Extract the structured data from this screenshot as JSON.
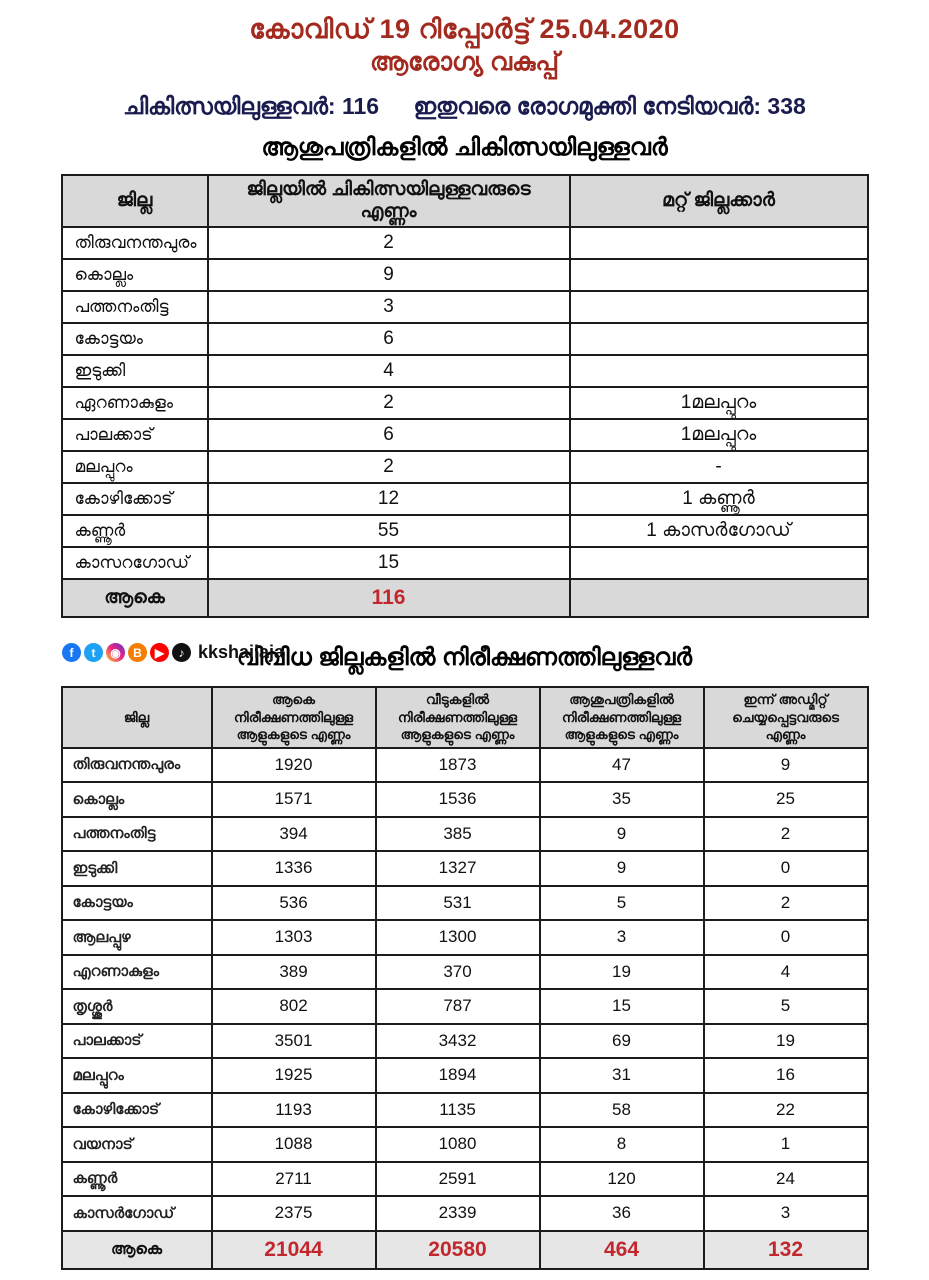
{
  "header": {
    "title": "കോവിഡ് 19 റിപ്പോർട്ട് 25.04.2020",
    "subtitle": "ആരോഗ്യ വകുപ്പ്",
    "in_treatment": "ചികിത്സയിലുള്ളവർ: 116",
    "recovered": "ഇതുവരെ രോഗമുക്തി നേടിയവർ: 338"
  },
  "hospital_table": {
    "heading": "ആശുപത്രികളിൽ ചികിത്സയിലുള്ളവർ",
    "columns": [
      "ജില്ല",
      "ജില്ലയിൽ ചികിത്സയിലുള്ളവരുടെ എണ്ണം",
      "മറ്റ് ജില്ലക്കാർ"
    ],
    "rows": [
      {
        "district": "തിരുവനന്തപുരം",
        "count": "2",
        "other": ""
      },
      {
        "district": "കൊല്ലം",
        "count": "9",
        "other": ""
      },
      {
        "district": "പത്തനംതിട്ട",
        "count": "3",
        "other": ""
      },
      {
        "district": "കോട്ടയം",
        "count": "6",
        "other": ""
      },
      {
        "district": "ഇടുക്കി",
        "count": "4",
        "other": ""
      },
      {
        "district": "ഏറണാകുളം",
        "count": "2",
        "other": "1മലപ്പുറം"
      },
      {
        "district": "പാലക്കാട്",
        "count": "6",
        "other": "1മലപ്പുറം"
      },
      {
        "district": "മലപ്പുറം",
        "count": "2",
        "other": "-"
      },
      {
        "district": "കോഴിക്കോട്",
        "count": "12",
        "other": "1 കണ്ണൂർ"
      },
      {
        "district": "കണ്ണൂർ",
        "count": "55",
        "other": "1 കാസർഗോഡ്"
      },
      {
        "district": "കാസറഗോഡ്",
        "count": "15",
        "other": ""
      }
    ],
    "total": {
      "label": "ആകെ",
      "count": "116",
      "other": ""
    }
  },
  "social": {
    "handle": "kkshailaja",
    "icons": [
      {
        "name": "facebook-icon",
        "glyph": "f",
        "color": "#1877f2"
      },
      {
        "name": "twitter-icon",
        "glyph": "t",
        "color": "#1da1f2"
      },
      {
        "name": "instagram-icon",
        "glyph": "◉",
        "color": "linear-gradient(45deg,#f9ce34,#ee2a7b,#6228d7)"
      },
      {
        "name": "blogger-icon",
        "glyph": "B",
        "color": "#f57d00"
      },
      {
        "name": "youtube-icon",
        "glyph": "▶",
        "color": "#ff0000"
      },
      {
        "name": "tiktok-icon",
        "glyph": "♪",
        "color": "#111111"
      }
    ]
  },
  "observation_table": {
    "heading": "വിവിധ ജില്ലകളിൽ നിരീക്ഷണത്തിലുള്ളവർ",
    "columns": [
      "ജില്ല",
      "ആകെ നിരീക്ഷണത്തിലുള്ള ആളുകളുടെ എണ്ണം",
      "വീടുകളിൽ നിരീക്ഷണത്തിലുള്ള ആളുകളുടെ എണ്ണം",
      "ആശുപത്രികളിൽ നിരീക്ഷണത്തിലുള്ള ആളുകളുടെ എണ്ണം",
      "ഇന്ന് അഡ്മിറ്റ് ചെയ്യപ്പെട്ടവരുടെ എണ്ണം"
    ],
    "rows": [
      {
        "district": "തിരുവനന്തപുരം",
        "total": "1920",
        "home": "1873",
        "hospital": "47",
        "admitted": "9"
      },
      {
        "district": "കൊല്ലം",
        "total": "1571",
        "home": "1536",
        "hospital": "35",
        "admitted": "25"
      },
      {
        "district": "പത്തനംതിട്ട",
        "total": "394",
        "home": "385",
        "hospital": "9",
        "admitted": "2"
      },
      {
        "district": "ഇടുക്കി",
        "total": "1336",
        "home": "1327",
        "hospital": "9",
        "admitted": "0"
      },
      {
        "district": "കോട്ടയം",
        "total": "536",
        "home": "531",
        "hospital": "5",
        "admitted": "2"
      },
      {
        "district": "ആലപ്പുഴ",
        "total": "1303",
        "home": "1300",
        "hospital": "3",
        "admitted": "0"
      },
      {
        "district": "എറണാകുളം",
        "total": "389",
        "home": "370",
        "hospital": "19",
        "admitted": "4"
      },
      {
        "district": "തൃശ്ശൂർ",
        "total": "802",
        "home": "787",
        "hospital": "15",
        "admitted": "5"
      },
      {
        "district": "പാലക്കാട്",
        "total": "3501",
        "home": "3432",
        "hospital": "69",
        "admitted": "19"
      },
      {
        "district": "മലപ്പുറം",
        "total": "1925",
        "home": "1894",
        "hospital": "31",
        "admitted": "16"
      },
      {
        "district": "കോഴിക്കോട്",
        "total": "1193",
        "home": "1135",
        "hospital": "58",
        "admitted": "22"
      },
      {
        "district": "വയനാട്",
        "total": "1088",
        "home": "1080",
        "hospital": "8",
        "admitted": "1"
      },
      {
        "district": "കണ്ണൂർ",
        "total": "2711",
        "home": "2591",
        "hospital": "120",
        "admitted": "24"
      },
      {
        "district": "കാസർഗോഡ്",
        "total": "2375",
        "home": "2339",
        "hospital": "36",
        "admitted": "3"
      }
    ],
    "total": {
      "label": "ആകെ",
      "total": "21044",
      "home": "20580",
      "hospital": "464",
      "admitted": "132"
    }
  },
  "colors": {
    "title_red": "#a32a1f",
    "stats_navy": "#1a1b4e",
    "value_red": "#c1272d",
    "header_gray": "#d9d9d9"
  }
}
